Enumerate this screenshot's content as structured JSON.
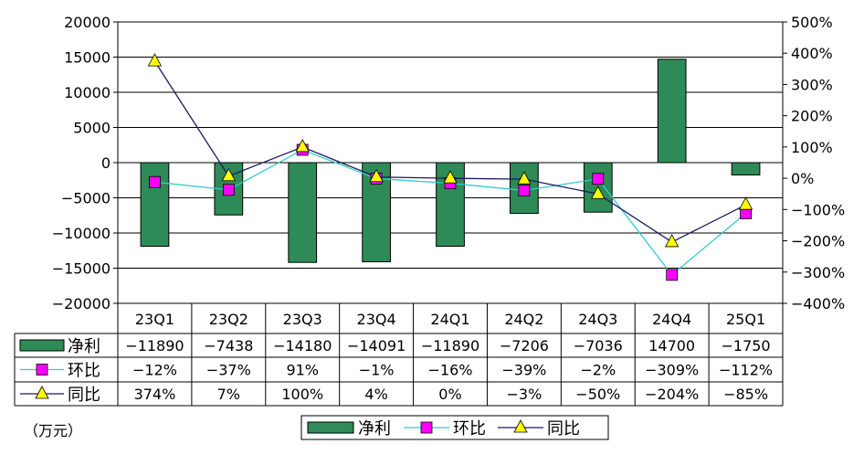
{
  "chart_data": {
    "type": "bar",
    "categories": [
      "23Q1",
      "23Q2",
      "23Q3",
      "23Q4",
      "24Q1",
      "24Q2",
      "24Q3",
      "24Q4",
      "25Q1"
    ],
    "unit_label": "（万元）",
    "left_axis": {
      "ylim": [
        -20000,
        20000
      ],
      "ticks": [
        "20000",
        "15000",
        "10000",
        "5000",
        "0",
        "-5000",
        "-10000",
        "-15000",
        "-20000"
      ]
    },
    "right_axis": {
      "ylim": [
        -400,
        500
      ],
      "ticks": [
        "500%",
        "400%",
        "300%",
        "200%",
        "100%",
        "0%",
        "-100%",
        "-200%",
        "-300%",
        "-400%"
      ]
    },
    "series": [
      {
        "name": "净利",
        "kind": "bar",
        "axis": "left",
        "color": "#2e8b57",
        "values": [
          -11890,
          -7438,
          -14180,
          -14091,
          -11890,
          -7206,
          -7036,
          14700,
          -1750
        ],
        "labels": [
          "-11890",
          "-7438",
          "-14180",
          "-14091",
          "-11890",
          "-7206",
          "-7036",
          "14700",
          "-1750"
        ]
      },
      {
        "name": "环比",
        "kind": "line",
        "axis": "right",
        "color": "#33cccc",
        "marker": "square",
        "marker_color": "#ff00ff",
        "values": [
          -12,
          -37,
          91,
          -1,
          -16,
          -39,
          -2,
          -309,
          -112
        ],
        "labels": [
          "-12%",
          "-37%",
          "91%",
          "-1%",
          "-16%",
          "-39%",
          "-2%",
          "-309%",
          "-112%"
        ]
      },
      {
        "name": "同比",
        "kind": "line",
        "axis": "right",
        "color": "#1a1a5e",
        "marker": "triangle",
        "marker_color": "#ffff00",
        "values": [
          374,
          7,
          100,
          4,
          0,
          -3,
          -50,
          -204,
          -85
        ],
        "labels": [
          "374%",
          "7%",
          "100%",
          "4%",
          "0%",
          "-3%",
          "-50%",
          "-204%",
          "-85%"
        ]
      }
    ],
    "legend_position": "bottom"
  }
}
